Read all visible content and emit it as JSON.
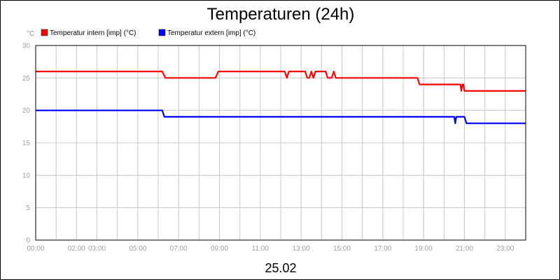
{
  "chart_data": {
    "type": "line",
    "title": "Temperaturen (24h)",
    "ylabel": "°C",
    "xlabel": "25.02",
    "ylim": [
      0,
      30
    ],
    "xlim": [
      0,
      24
    ],
    "y_ticks": [
      0,
      5,
      10,
      15,
      20,
      25,
      30
    ],
    "x_ticks": [
      {
        "x": 0,
        "label": "00:00"
      },
      {
        "x": 2,
        "label": "02:00"
      },
      {
        "x": 3,
        "label": "03:00"
      },
      {
        "x": 5,
        "label": "05:00"
      },
      {
        "x": 7,
        "label": "07:00"
      },
      {
        "x": 9,
        "label": "09:00"
      },
      {
        "x": 11,
        "label": "11:00"
      },
      {
        "x": 13,
        "label": "13:00"
      },
      {
        "x": 15,
        "label": "15:00"
      },
      {
        "x": 17,
        "label": "17:00"
      },
      {
        "x": 19,
        "label": "19:00"
      },
      {
        "x": 21,
        "label": "21:00"
      },
      {
        "x": 23,
        "label": "23:00"
      }
    ],
    "grid": true,
    "legend_position": "top-left",
    "series": [
      {
        "name": "Temperatur intern [imp] (°C)",
        "color": "#ff0000",
        "x": [
          0,
          6.2,
          6.35,
          8.8,
          8.95,
          12.2,
          12.3,
          12.4,
          12.5,
          13.2,
          13.3,
          13.4,
          13.5,
          13.6,
          13.7,
          14.2,
          14.3,
          14.4,
          14.5,
          14.6,
          14.7,
          18.7,
          18.8,
          20.8,
          20.85,
          20.9,
          20.95,
          21.0,
          24
        ],
        "y": [
          26,
          26,
          25,
          25,
          26,
          26,
          25,
          26,
          26,
          26,
          25,
          25,
          26,
          25,
          26,
          26,
          25,
          25,
          25,
          26,
          25,
          25,
          24,
          24,
          23,
          24,
          24,
          23,
          23
        ]
      },
      {
        "name": "Temperatur extern [imp] (°C)",
        "color": "#0000ff",
        "x": [
          0,
          6.2,
          6.3,
          20.5,
          20.55,
          20.6,
          21.0,
          21.1,
          24
        ],
        "y": [
          20,
          20,
          19,
          19,
          18,
          19,
          19,
          18,
          18
        ]
      }
    ]
  }
}
